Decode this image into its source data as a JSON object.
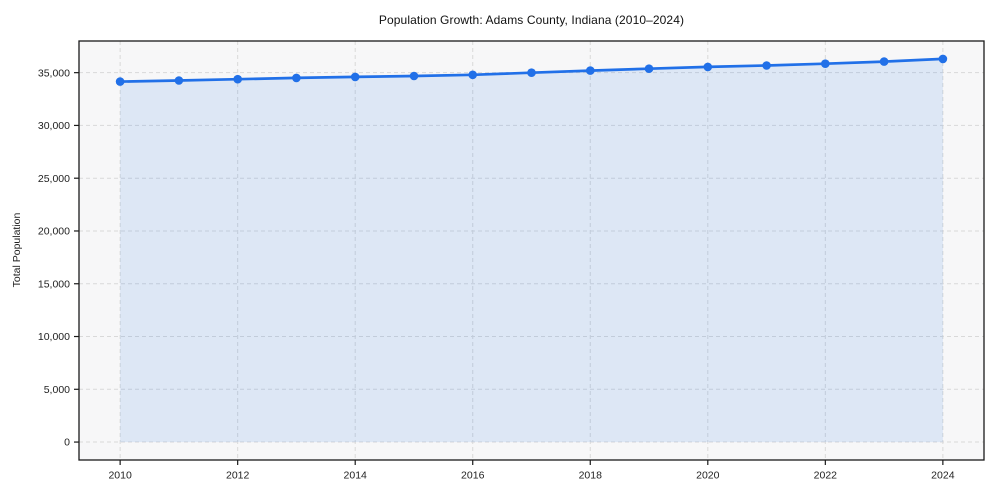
{
  "figure": {
    "title": "Population Growth: Adams County, Indiana (2010–2024)",
    "ylabel": "Total Population",
    "xlabel": ""
  },
  "chart_data": {
    "type": "area",
    "title": "Population Growth: Adams County, Indiana (2010–2024)",
    "xlabel": "",
    "ylabel": "Total Population",
    "x": [
      2010,
      2011,
      2012,
      2013,
      2014,
      2015,
      2016,
      2017,
      2018,
      2019,
      2020,
      2021,
      2022,
      2023,
      2024
    ],
    "series": [
      {
        "name": "Total Population",
        "values": [
          34150,
          34260,
          34380,
          34500,
          34600,
          34680,
          34800,
          35000,
          35200,
          35380,
          35550,
          35680,
          35850,
          36050,
          36300
        ]
      }
    ],
    "xticks": [
      2010,
      2012,
      2014,
      2016,
      2018,
      2020,
      2022,
      2024
    ],
    "yticks": [
      0,
      5000,
      10000,
      15000,
      20000,
      25000,
      30000,
      35000
    ],
    "xlim": [
      2009.3,
      2024.7
    ],
    "ylim": [
      -1700,
      38000
    ],
    "grid": true,
    "grid_style": "dashed",
    "legend": false,
    "marker": "circle",
    "colors": {
      "line": "#2170e8",
      "marker": "#2170e8",
      "fill": "rgba(33,112,232,0.12)",
      "plot_bg": "#f7f7f8",
      "grid": "#d9d9d9",
      "spine": "#1a1a1a",
      "tick": "#1a1a1a",
      "tick_label": "#222222",
      "title": "#111111"
    }
  }
}
